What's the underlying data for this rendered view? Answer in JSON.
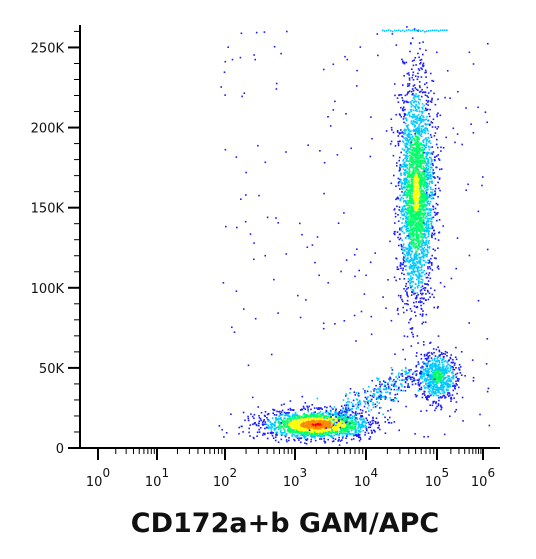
{
  "chart_data": {
    "type": "scatter",
    "title": "",
    "xlabel": "CD172a+b  GAM/APC",
    "ylabel": "",
    "x_scale": "biexponential",
    "x_ticks": [
      {
        "base": "10",
        "exp": "0",
        "value": 1
      },
      {
        "base": "10",
        "exp": "1",
        "value": 10
      },
      {
        "base": "10",
        "exp": "2",
        "value": 100
      },
      {
        "base": "10",
        "exp": "3",
        "value": 1000
      },
      {
        "base": "10",
        "exp": "4",
        "value": 10000
      },
      {
        "base": "10",
        "exp": "5",
        "value": 100000
      },
      {
        "base": "10",
        "exp": "6",
        "value": 1000000
      }
    ],
    "y_ticks": [
      {
        "label": "0",
        "value": 0
      },
      {
        "label": "50K",
        "value": 50000
      },
      {
        "label": "100K",
        "value": 100000
      },
      {
        "label": "150K",
        "value": 150000
      },
      {
        "label": "200K",
        "value": 200000
      },
      {
        "label": "250K",
        "value": 250000
      }
    ],
    "ylim": [
      0,
      262144
    ],
    "populations": [
      {
        "name": "",
        "x_center": 2000,
        "y_center": 15000,
        "density": "high"
      },
      {
        "name": "",
        "x_center": 50000,
        "y_center": 160000,
        "density": "high"
      },
      {
        "name": "",
        "x_center": 100000,
        "y_center": 45000,
        "density": "medium"
      }
    ],
    "colormap": [
      "#1a1aff",
      "#00c8ff",
      "#00ff66",
      "#ffff00",
      "#ff8800",
      "#ff0000"
    ],
    "grid": false
  }
}
